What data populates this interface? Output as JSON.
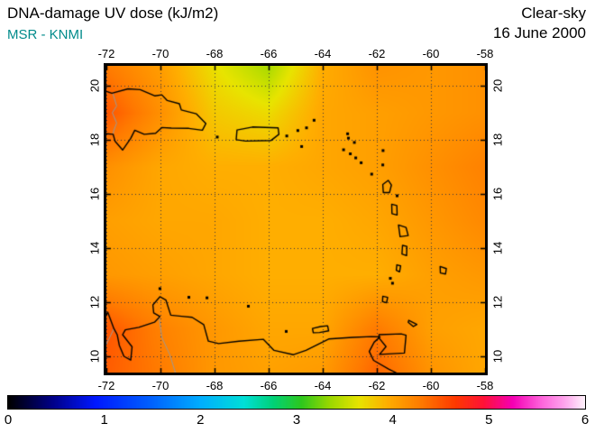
{
  "header": {
    "title": "DNA-damage UV dose (kJ/m2)",
    "source": "MSR - KNMI",
    "condition": "Clear-sky",
    "date": "16 June 2000"
  },
  "colors": {
    "source_text": "#008B8B",
    "title_text": "#000000",
    "grid_line": "#333344",
    "coast_line": "#000000",
    "border_line": "#999999",
    "frame": "#000000",
    "background": "#FFFFFF"
  },
  "axes": {
    "lon_range": [
      -72,
      -58
    ],
    "lat_range": [
      9.4,
      20.73
    ],
    "lon_ticks": [
      -72,
      -70,
      -68,
      -66,
      -64,
      -62,
      -60,
      -58
    ],
    "lat_ticks": [
      20,
      18,
      16,
      14,
      12,
      10
    ]
  },
  "colorbar": {
    "min": 0,
    "max": 6,
    "tick_labels": [
      "0",
      "1",
      "2",
      "3",
      "4",
      "5",
      "6"
    ],
    "stops": [
      [
        0.0,
        "#000000"
      ],
      [
        0.45,
        "#000086"
      ],
      [
        0.9,
        "#0018FF"
      ],
      [
        1.5,
        "#0064FF"
      ],
      [
        2.0,
        "#00AEFF"
      ],
      [
        2.45,
        "#00E0D8"
      ],
      [
        2.75,
        "#00D27A"
      ],
      [
        3.05,
        "#2EC81E"
      ],
      [
        3.35,
        "#9CD800"
      ],
      [
        3.65,
        "#E8E400"
      ],
      [
        3.95,
        "#FFAE00"
      ],
      [
        4.3,
        "#FF7A00"
      ],
      [
        4.65,
        "#FF3A00"
      ],
      [
        4.95,
        "#FF1238"
      ],
      [
        5.25,
        "#F500B4"
      ],
      [
        5.55,
        "#FF64DC"
      ],
      [
        5.8,
        "#FFA8EE"
      ],
      [
        6.0,
        "#FFF2FC"
      ]
    ]
  },
  "chart_data": {
    "type": "heatmap",
    "title": "DNA-damage UV dose (kJ/m2)",
    "subtitle": "MSR - KNMI | Clear-sky | 16 June 2000",
    "units": "kJ/m2",
    "value_range": [
      0,
      6
    ],
    "lon_range": [
      -72,
      -58
    ],
    "lat_range": [
      9.4,
      20.73
    ],
    "lon_tick_labels": [
      "-72",
      "-70",
      "-68",
      "-66",
      "-64",
      "-62",
      "-60",
      "-58"
    ],
    "lat_tick_labels": [
      "20",
      "18",
      "16",
      "14",
      "12",
      "10"
    ],
    "colorbar_tick_labels": [
      "0",
      "1",
      "2",
      "3",
      "4",
      "5",
      "6"
    ],
    "grid_lons": [
      -72,
      -70,
      -68,
      -66,
      -64,
      -62,
      -60,
      -58
    ],
    "grid_lats": [
      21,
      19,
      17,
      15,
      13,
      11,
      9
    ],
    "values_kj_m2": [
      [
        4.25,
        4.05,
        3.65,
        3.35,
        3.95,
        4.15,
        4.1,
        4.15
      ],
      [
        4.5,
        4.15,
        3.8,
        3.7,
        4.0,
        4.05,
        4.1,
        4.15
      ],
      [
        4.15,
        4.0,
        3.95,
        3.95,
        4.0,
        4.05,
        4.15,
        4.25
      ],
      [
        4.05,
        4.0,
        4.0,
        3.95,
        3.95,
        4.0,
        4.1,
        4.2
      ],
      [
        4.1,
        4.05,
        4.0,
        3.95,
        3.95,
        3.95,
        4.05,
        4.1
      ],
      [
        4.5,
        4.25,
        4.1,
        4.0,
        4.0,
        4.3,
        4.05,
        4.0
      ],
      [
        4.45,
        4.3,
        4.1,
        4.05,
        4.1,
        4.45,
        4.15,
        4.0
      ]
    ]
  },
  "geo": {
    "coastlines": [
      {
        "name": "hispaniola",
        "closed": true,
        "points": [
          [
            -72.6,
            19.4
          ],
          [
            -72.4,
            19.93
          ],
          [
            -71.8,
            19.72
          ],
          [
            -71.2,
            19.88
          ],
          [
            -70.75,
            19.85
          ],
          [
            -70.2,
            19.62
          ],
          [
            -69.95,
            19.66
          ],
          [
            -69.75,
            19.45
          ],
          [
            -69.3,
            19.33
          ],
          [
            -69.23,
            19.1
          ],
          [
            -68.68,
            18.96
          ],
          [
            -68.32,
            18.6
          ],
          [
            -68.45,
            18.35
          ],
          [
            -68.95,
            18.42
          ],
          [
            -69.6,
            18.43
          ],
          [
            -69.95,
            18.45
          ],
          [
            -70.18,
            18.24
          ],
          [
            -70.6,
            18.2
          ],
          [
            -70.95,
            18.35
          ],
          [
            -71.1,
            18.05
          ],
          [
            -71.4,
            17.62
          ],
          [
            -71.68,
            17.95
          ],
          [
            -71.75,
            18.2
          ],
          [
            -72.05,
            18.23
          ],
          [
            -72.4,
            18.35
          ],
          [
            -72.6,
            18.55
          ]
        ]
      },
      {
        "name": "puerto-rico",
        "closed": true,
        "points": [
          [
            -67.17,
            18.36
          ],
          [
            -66.6,
            18.47
          ],
          [
            -65.65,
            18.44
          ],
          [
            -65.62,
            18.2
          ],
          [
            -65.92,
            17.97
          ],
          [
            -66.85,
            17.95
          ],
          [
            -67.2,
            18.0
          ]
        ]
      },
      {
        "name": "guadeloupe",
        "closed": true,
        "points": [
          [
            -61.78,
            16.35
          ],
          [
            -61.58,
            16.5
          ],
          [
            -61.46,
            16.33
          ],
          [
            -61.53,
            16.05
          ],
          [
            -61.76,
            16.05
          ]
        ]
      },
      {
        "name": "dominica",
        "closed": true,
        "points": [
          [
            -61.45,
            15.62
          ],
          [
            -61.26,
            15.57
          ],
          [
            -61.25,
            15.22
          ],
          [
            -61.44,
            15.27
          ]
        ]
      },
      {
        "name": "martinique",
        "closed": true,
        "points": [
          [
            -61.2,
            14.85
          ],
          [
            -60.92,
            14.76
          ],
          [
            -60.84,
            14.46
          ],
          [
            -61.14,
            14.42
          ]
        ]
      },
      {
        "name": "st-lucia",
        "closed": true,
        "points": [
          [
            -61.05,
            14.1
          ],
          [
            -60.89,
            14.06
          ],
          [
            -60.9,
            13.72
          ],
          [
            -61.07,
            13.78
          ]
        ]
      },
      {
        "name": "st-vincent",
        "closed": true,
        "points": [
          [
            -61.26,
            13.38
          ],
          [
            -61.12,
            13.34
          ],
          [
            -61.16,
            13.12
          ],
          [
            -61.28,
            13.18
          ]
        ]
      },
      {
        "name": "grenada",
        "closed": true,
        "points": [
          [
            -61.78,
            12.22
          ],
          [
            -61.6,
            12.18
          ],
          [
            -61.64,
            11.98
          ],
          [
            -61.79,
            12.02
          ]
        ]
      },
      {
        "name": "barbados",
        "closed": true,
        "points": [
          [
            -59.66,
            13.32
          ],
          [
            -59.43,
            13.24
          ],
          [
            -59.46,
            13.04
          ],
          [
            -59.65,
            13.08
          ]
        ]
      },
      {
        "name": "trinidad",
        "closed": true,
        "points": [
          [
            -61.92,
            10.8
          ],
          [
            -61.1,
            10.83
          ],
          [
            -60.92,
            10.78
          ],
          [
            -60.98,
            10.12
          ],
          [
            -61.9,
            10.07
          ],
          [
            -61.66,
            10.36
          ],
          [
            -61.92,
            10.68
          ]
        ]
      },
      {
        "name": "tobago",
        "closed": true,
        "points": [
          [
            -60.82,
            11.33
          ],
          [
            -60.52,
            11.18
          ],
          [
            -60.65,
            11.1
          ],
          [
            -60.84,
            11.26
          ]
        ]
      },
      {
        "name": "margarita",
        "closed": true,
        "points": [
          [
            -64.38,
            11.03
          ],
          [
            -64.08,
            11.1
          ],
          [
            -63.82,
            11.13
          ],
          [
            -63.78,
            10.94
          ],
          [
            -64.12,
            10.88
          ],
          [
            -64.35,
            10.87
          ]
        ]
      },
      {
        "name": "south-america-coast",
        "closed": false,
        "points": [
          [
            -72.6,
            10.95
          ],
          [
            -72.2,
            11.12
          ],
          [
            -71.95,
            11.63
          ],
          [
            -71.72,
            11.02
          ],
          [
            -71.6,
            10.8
          ],
          [
            -71.52,
            10.4
          ],
          [
            -71.35,
            10.0
          ],
          [
            -71.1,
            9.86
          ],
          [
            -71.05,
            10.35
          ],
          [
            -71.4,
            10.8
          ],
          [
            -71.3,
            10.98
          ],
          [
            -70.8,
            11.07
          ],
          [
            -70.22,
            11.26
          ],
          [
            -70.02,
            11.47
          ],
          [
            -70.25,
            11.6
          ],
          [
            -70.28,
            11.9
          ],
          [
            -70.02,
            12.2
          ],
          [
            -69.8,
            12.08
          ],
          [
            -69.62,
            11.52
          ],
          [
            -69.22,
            11.48
          ],
          [
            -68.83,
            11.44
          ],
          [
            -68.4,
            11.17
          ],
          [
            -68.23,
            10.56
          ],
          [
            -67.85,
            10.47
          ],
          [
            -67.1,
            10.56
          ],
          [
            -66.2,
            10.63
          ],
          [
            -65.8,
            10.22
          ],
          [
            -65.08,
            10.06
          ],
          [
            -64.62,
            10.22
          ],
          [
            -64.1,
            10.48
          ],
          [
            -63.78,
            10.64
          ],
          [
            -62.9,
            10.7
          ],
          [
            -62.2,
            10.73
          ],
          [
            -61.88,
            10.72
          ],
          [
            -62.1,
            10.52
          ],
          [
            -62.28,
            10.18
          ],
          [
            -62.12,
            9.85
          ],
          [
            -61.55,
            9.52
          ],
          [
            -61.1,
            9.3
          ],
          [
            -60.9,
            9.1
          ]
        ]
      }
    ],
    "island_points": [
      [
        -67.9,
        18.1
      ],
      [
        -65.33,
        18.14
      ],
      [
        -64.78,
        17.75
      ],
      [
        -64.92,
        18.34
      ],
      [
        -64.6,
        18.44
      ],
      [
        -64.32,
        18.72
      ],
      [
        -63.08,
        18.22
      ],
      [
        -63.05,
        18.06
      ],
      [
        -62.83,
        17.9
      ],
      [
        -63.23,
        17.63
      ],
      [
        -62.98,
        17.48
      ],
      [
        -62.78,
        17.33
      ],
      [
        -62.58,
        17.15
      ],
      [
        -61.77,
        17.6
      ],
      [
        -61.78,
        17.07
      ],
      [
        -62.19,
        16.73
      ],
      [
        -61.25,
        15.93
      ],
      [
        -61.5,
        12.88
      ],
      [
        -61.42,
        12.7
      ],
      [
        -70.02,
        12.5
      ],
      [
        -68.95,
        12.18
      ],
      [
        -68.28,
        12.16
      ],
      [
        -66.75,
        11.85
      ],
      [
        -65.35,
        10.92
      ]
    ],
    "borders": [
      [
        [
          -71.76,
          19.71
        ],
        [
          -71.62,
          19.25
        ],
        [
          -71.78,
          19.0
        ],
        [
          -71.62,
          18.62
        ],
        [
          -71.73,
          18.33
        ],
        [
          -71.75,
          18.2
        ]
      ],
      [
        [
          -71.72,
          11.02
        ],
        [
          -72.05,
          10.35
        ],
        [
          -72.35,
          9.7
        ],
        [
          -72.45,
          9.35
        ]
      ],
      [
        [
          -70.05,
          11.45
        ],
        [
          -69.95,
          10.7
        ],
        [
          -69.65,
          10.05
        ],
        [
          -69.45,
          9.4
        ]
      ]
    ]
  }
}
